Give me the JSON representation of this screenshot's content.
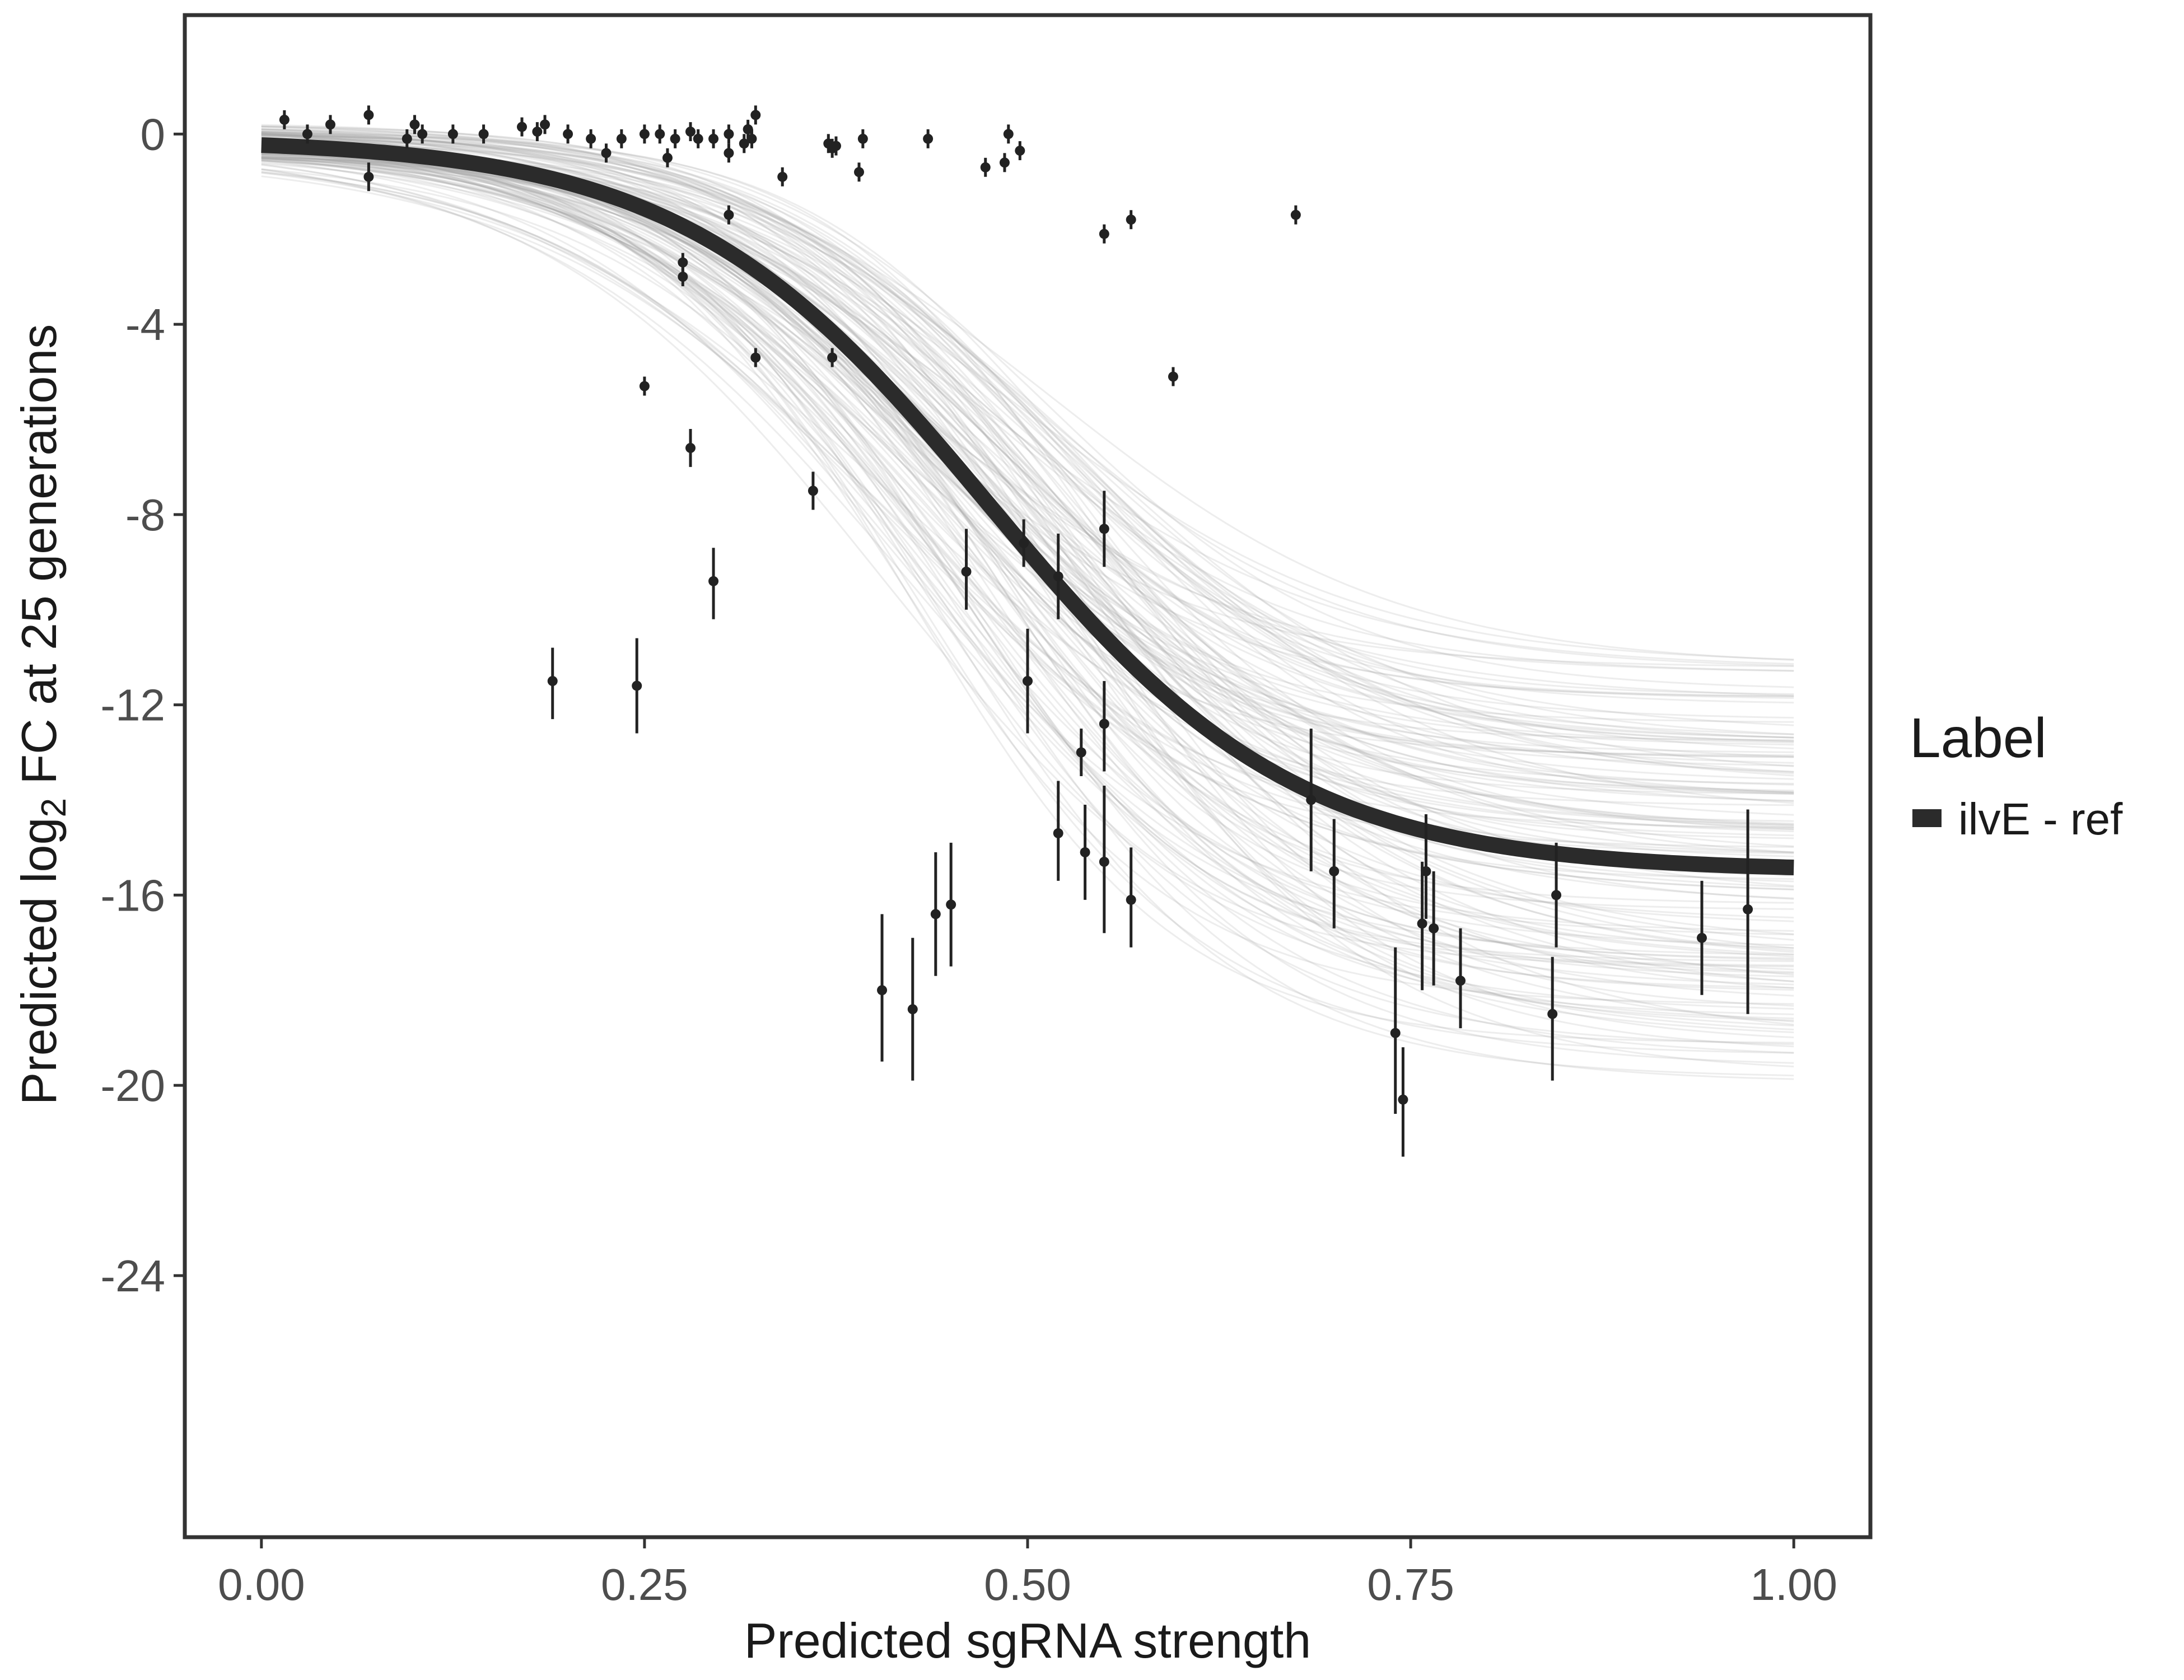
{
  "chart_data": {
    "type": "line",
    "xlabel": "Predicted sgRNA strength",
    "ylabel_parts": [
      "Predicted  log",
      "2",
      " FC at 25 generations"
    ],
    "xlim": [
      -0.1,
      2.1
    ],
    "ylim": [
      -29.5,
      2.5
    ],
    "x_ticks": [
      0,
      0.5,
      1,
      1.5,
      2
    ],
    "x_tick_labels": [
      "0.00",
      "0.25",
      "0.50",
      "0.75",
      "1.00"
    ],
    "y_ticks": [
      0,
      -4,
      -8,
      -12,
      -16,
      -20,
      -24
    ],
    "y_tick_labels": [
      "0",
      "-4",
      "-8",
      "-12",
      "-16",
      "-20",
      "-24"
    ],
    "grid": false,
    "legend": {
      "title": "Label",
      "position": "right",
      "entries": [
        {
          "label": "ilvE - ref",
          "color": "#2b2b2b"
        }
      ]
    },
    "fit": {
      "name": "ilvE - ref",
      "color": "#2b2b2b",
      "ymax": -0.1,
      "ymin": -15.5,
      "midpoint": 0.95,
      "width": 0.2
    },
    "posterior_draws": {
      "color": "#a6a6a6",
      "count": 140
    },
    "points": [
      {
        "x": 0.03,
        "y": 0.3,
        "lo": 0.1,
        "hi": 0.5
      },
      {
        "x": 0.06,
        "y": 0.0,
        "lo": -0.2,
        "hi": 0.2
      },
      {
        "x": 0.09,
        "y": 0.2,
        "lo": 0.0,
        "hi": 0.4
      },
      {
        "x": 0.14,
        "y": 0.4,
        "lo": 0.2,
        "hi": 0.6
      },
      {
        "x": 0.14,
        "y": -0.9,
        "lo": -1.2,
        "hi": -0.6
      },
      {
        "x": 0.19,
        "y": -0.1,
        "lo": -0.3,
        "hi": 0.1
      },
      {
        "x": 0.2,
        "y": 0.2,
        "lo": 0.0,
        "hi": 0.4
      },
      {
        "x": 0.21,
        "y": 0.0,
        "lo": -0.2,
        "hi": 0.2
      },
      {
        "x": 0.25,
        "y": 0.0,
        "lo": -0.2,
        "hi": 0.2
      },
      {
        "x": 0.29,
        "y": 0.0,
        "lo": -0.2,
        "hi": 0.2
      },
      {
        "x": 0.34,
        "y": 0.15,
        "lo": -0.05,
        "hi": 0.35
      },
      {
        "x": 0.36,
        "y": 0.05,
        "lo": -0.15,
        "hi": 0.25
      },
      {
        "x": 0.37,
        "y": 0.2,
        "lo": 0.0,
        "hi": 0.4
      },
      {
        "x": 0.38,
        "y": -11.5,
        "lo": -12.3,
        "hi": -10.8
      },
      {
        "x": 0.4,
        "y": 0.0,
        "lo": -0.2,
        "hi": 0.2
      },
      {
        "x": 0.43,
        "y": -0.1,
        "lo": -0.3,
        "hi": 0.1
      },
      {
        "x": 0.45,
        "y": -0.4,
        "lo": -0.6,
        "hi": -0.2
      },
      {
        "x": 0.47,
        "y": -0.1,
        "lo": -0.3,
        "hi": 0.1
      },
      {
        "x": 0.49,
        "y": -11.6,
        "lo": -12.6,
        "hi": -10.6
      },
      {
        "x": 0.5,
        "y": 0.0,
        "lo": -0.2,
        "hi": 0.2
      },
      {
        "x": 0.5,
        "y": -5.3,
        "lo": -5.5,
        "hi": -5.1
      },
      {
        "x": 0.52,
        "y": 0.0,
        "lo": -0.2,
        "hi": 0.2
      },
      {
        "x": 0.53,
        "y": -0.5,
        "lo": -0.7,
        "hi": -0.3
      },
      {
        "x": 0.54,
        "y": -0.1,
        "lo": -0.3,
        "hi": 0.1
      },
      {
        "x": 0.55,
        "y": -2.7,
        "lo": -2.9,
        "hi": -2.5
      },
      {
        "x": 0.55,
        "y": -3.0,
        "lo": -3.2,
        "hi": -2.8
      },
      {
        "x": 0.56,
        "y": -6.6,
        "lo": -7.0,
        "hi": -6.2
      },
      {
        "x": 0.56,
        "y": 0.05,
        "lo": -0.15,
        "hi": 0.25
      },
      {
        "x": 0.57,
        "y": -0.1,
        "lo": -0.3,
        "hi": 0.1
      },
      {
        "x": 0.59,
        "y": -0.1,
        "lo": -0.3,
        "hi": 0.1
      },
      {
        "x": 0.59,
        "y": -9.4,
        "lo": -10.2,
        "hi": -8.7
      },
      {
        "x": 0.61,
        "y": 0.0,
        "lo": -0.2,
        "hi": 0.2
      },
      {
        "x": 0.61,
        "y": -0.4,
        "lo": -0.6,
        "hi": -0.2
      },
      {
        "x": 0.61,
        "y": -1.7,
        "lo": -1.9,
        "hi": -1.5
      },
      {
        "x": 0.63,
        "y": -0.2,
        "lo": -0.4,
        "hi": 0.0
      },
      {
        "x": 0.635,
        "y": 0.1,
        "lo": -0.1,
        "hi": 0.3
      },
      {
        "x": 0.64,
        "y": -0.1,
        "lo": -0.3,
        "hi": 0.1
      },
      {
        "x": 0.645,
        "y": 0.4,
        "lo": 0.2,
        "hi": 0.6
      },
      {
        "x": 0.645,
        "y": -4.7,
        "lo": -4.9,
        "hi": -4.5
      },
      {
        "x": 0.68,
        "y": -0.9,
        "lo": -1.1,
        "hi": -0.7
      },
      {
        "x": 0.72,
        "y": -7.5,
        "lo": -7.9,
        "hi": -7.1
      },
      {
        "x": 0.74,
        "y": -0.2,
        "lo": -0.4,
        "hi": 0.0
      },
      {
        "x": 0.745,
        "y": -0.3,
        "lo": -0.5,
        "hi": -0.1
      },
      {
        "x": 0.745,
        "y": -4.7,
        "lo": -4.9,
        "hi": -4.5
      },
      {
        "x": 0.75,
        "y": -0.25,
        "lo": -0.45,
        "hi": -0.05
      },
      {
        "x": 0.78,
        "y": -0.8,
        "lo": -1.0,
        "hi": -0.6
      },
      {
        "x": 0.785,
        "y": -0.1,
        "lo": -0.3,
        "hi": 0.1
      },
      {
        "x": 0.81,
        "y": -18.0,
        "lo": -19.5,
        "hi": -16.4
      },
      {
        "x": 0.85,
        "y": -18.4,
        "lo": -19.9,
        "hi": -16.9
      },
      {
        "x": 0.87,
        "y": -0.1,
        "lo": -0.3,
        "hi": 0.1
      },
      {
        "x": 0.88,
        "y": -16.4,
        "lo": -17.7,
        "hi": -15.1
      },
      {
        "x": 0.9,
        "y": -16.2,
        "lo": -17.5,
        "hi": -14.9
      },
      {
        "x": 0.92,
        "y": -9.2,
        "lo": -10.0,
        "hi": -8.3
      },
      {
        "x": 0.945,
        "y": -0.7,
        "lo": -0.9,
        "hi": -0.5
      },
      {
        "x": 0.97,
        "y": -0.6,
        "lo": -0.8,
        "hi": -0.4
      },
      {
        "x": 0.975,
        "y": 0.0,
        "lo": -0.2,
        "hi": 0.2
      },
      {
        "x": 0.99,
        "y": -0.35,
        "lo": -0.55,
        "hi": -0.15
      },
      {
        "x": 0.995,
        "y": -8.6,
        "lo": -9.1,
        "hi": -8.1
      },
      {
        "x": 1.0,
        "y": -11.5,
        "lo": -12.6,
        "hi": -10.4
      },
      {
        "x": 1.04,
        "y": -14.7,
        "lo": -15.7,
        "hi": -13.6
      },
      {
        "x": 1.04,
        "y": -9.3,
        "lo": -10.2,
        "hi": -8.4
      },
      {
        "x": 1.07,
        "y": -13.0,
        "lo": -13.5,
        "hi": -12.5
      },
      {
        "x": 1.075,
        "y": -15.1,
        "lo": -16.1,
        "hi": -14.1
      },
      {
        "x": 1.1,
        "y": -2.1,
        "lo": -2.3,
        "hi": -1.9
      },
      {
        "x": 1.1,
        "y": -8.3,
        "lo": -9.1,
        "hi": -7.5
      },
      {
        "x": 1.1,
        "y": -12.4,
        "lo": -13.4,
        "hi": -11.5
      },
      {
        "x": 1.1,
        "y": -15.3,
        "lo": -16.8,
        "hi": -13.7
      },
      {
        "x": 1.135,
        "y": -1.8,
        "lo": -2.0,
        "hi": -1.6
      },
      {
        "x": 1.135,
        "y": -16.1,
        "lo": -17.1,
        "hi": -15.0
      },
      {
        "x": 1.19,
        "y": -5.1,
        "lo": -5.3,
        "hi": -4.9
      },
      {
        "x": 1.35,
        "y": -1.7,
        "lo": -1.9,
        "hi": -1.5
      },
      {
        "x": 1.37,
        "y": -14.0,
        "lo": -15.5,
        "hi": -12.5
      },
      {
        "x": 1.4,
        "y": -15.5,
        "lo": -16.7,
        "hi": -14.4
      },
      {
        "x": 1.48,
        "y": -18.9,
        "lo": -20.6,
        "hi": -17.1
      },
      {
        "x": 1.49,
        "y": -20.3,
        "lo": -21.5,
        "hi": -19.2
      },
      {
        "x": 1.515,
        "y": -16.6,
        "lo": -18.0,
        "hi": -15.3
      },
      {
        "x": 1.52,
        "y": -15.5,
        "lo": -16.5,
        "hi": -14.3
      },
      {
        "x": 1.53,
        "y": -16.7,
        "lo": -17.9,
        "hi": -15.5
      },
      {
        "x": 1.565,
        "y": -17.8,
        "lo": -18.8,
        "hi": -16.7
      },
      {
        "x": 1.685,
        "y": -18.5,
        "lo": -19.9,
        "hi": -17.3
      },
      {
        "x": 1.69,
        "y": -16.0,
        "lo": -17.1,
        "hi": -14.9
      },
      {
        "x": 1.88,
        "y": -16.9,
        "lo": -18.1,
        "hi": -15.7
      },
      {
        "x": 1.94,
        "y": -16.3,
        "lo": -18.5,
        "hi": -14.2
      }
    ]
  }
}
